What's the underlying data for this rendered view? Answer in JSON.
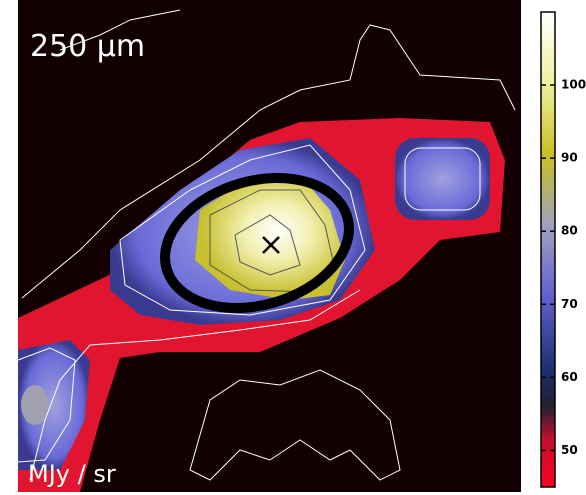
{
  "chart_data": {
    "type": "image",
    "annotations": [
      "250 μm",
      "MJy / sr"
    ],
    "colorbar": {
      "ylim": [
        45,
        110
      ],
      "yticks": [
        50,
        60,
        70,
        80,
        90,
        100
      ]
    }
  }
}
